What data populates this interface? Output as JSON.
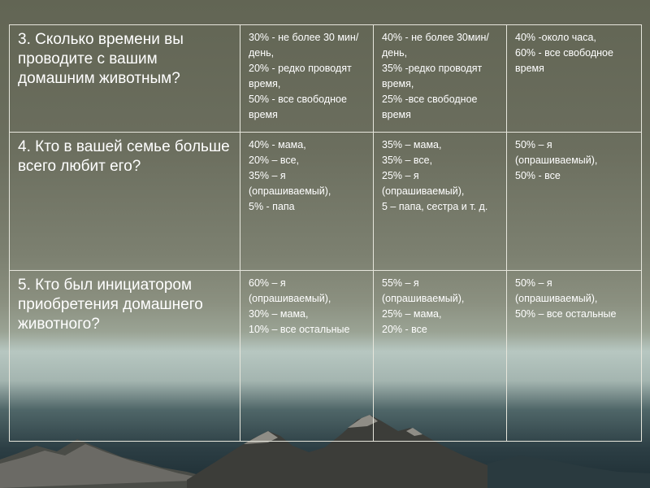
{
  "table": {
    "rows": [
      {
        "question": "3. Сколько времени вы проводите с вашим домашним животным?",
        "answers": [
          [
            "30% - не более 30 мин/день,",
            "20% - редко проводят время,",
            "50% - все свободное время"
          ],
          [
            "40% - не более 30мин/день,",
            "35% -редко проводят время,",
            "25% -все свободное время"
          ],
          [
            "40% -около часа,",
            "60% - все свободное время"
          ]
        ]
      },
      {
        "question": "4. Кто в вашей семье больше всего любит его?",
        "answers": [
          [
            "40% - мама,",
            "20% – все,",
            "35% – я (опрашиваемый),",
            "5% - папа"
          ],
          [
            "35% – мама,",
            "35% – все,",
            "25% – я (опрашиваемый),",
            "5 – папа, сестра и т. д."
          ],
          [
            "50% – я (опрашиваемый),",
            "50% - все"
          ]
        ]
      },
      {
        "question": "5. Кто был инициатором приобретения домашнего животного?",
        "answers": [
          [
            "60% – я (опрашиваемый),",
            "30% – мама,",
            "10% – все остальные"
          ],
          [
            "55% – я (опрашиваемый),",
            "25% – мама,",
            "20% - все"
          ],
          [
            "50% – я (опрашиваемый),",
            "50% – все остальные"
          ]
        ]
      }
    ]
  }
}
